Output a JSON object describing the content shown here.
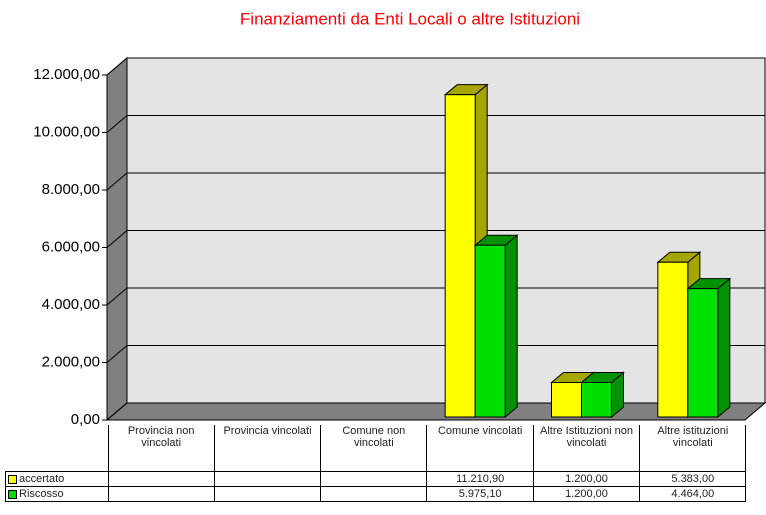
{
  "chart_data": {
    "type": "bar3d",
    "title": "Finanziamenti  da Enti Locali o altre Istituzioni",
    "categories": [
      "Provincia non vincolati",
      "Provincia vincolati",
      "Comune non vincolati",
      "Comune vincolati",
      "Altre Istituzioni non vincolati",
      "Altre istituzioni vincolati"
    ],
    "series": [
      {
        "name": "accertato",
        "color": "#ffff00",
        "values": [
          null,
          null,
          null,
          11210.9,
          1200,
          5383
        ],
        "value_labels": [
          null,
          null,
          null,
          "11.210,90",
          "1.200,00",
          "5.383,00"
        ]
      },
      {
        "name": "Riscosso",
        "color": "#00e000",
        "values": [
          null,
          null,
          null,
          5975.1,
          1200,
          4464
        ],
        "value_labels": [
          null,
          null,
          null,
          "5.975,10",
          "1.200,00",
          "4.464,00"
        ]
      }
    ],
    "ylim": [
      0,
      12000
    ],
    "yticks": [
      {
        "value": 0,
        "label": "0,00"
      },
      {
        "value": 2000,
        "label": "2.000,00"
      },
      {
        "value": 4000,
        "label": "4.000,00"
      },
      {
        "value": 6000,
        "label": "6.000,00"
      },
      {
        "value": 8000,
        "label": "8.000,00"
      },
      {
        "value": 10000,
        "label": "10.000,00"
      },
      {
        "value": 12000,
        "label": "12.000,00"
      }
    ],
    "grid": true
  }
}
